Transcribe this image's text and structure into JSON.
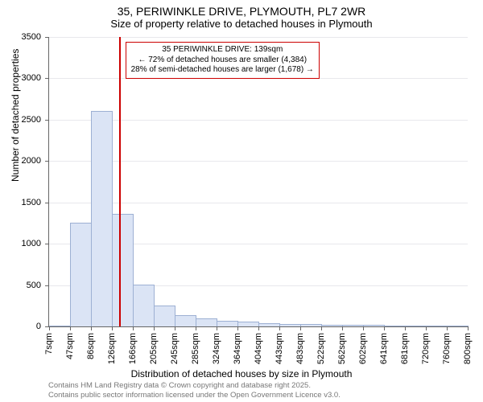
{
  "title": "35, PERIWINKLE DRIVE, PLYMOUTH, PL7 2WR",
  "subtitle": "Size of property relative to detached houses in Plymouth",
  "ylabel": "Number of detached properties",
  "xlabel": "Distribution of detached houses by size in Plymouth",
  "chart": {
    "type": "histogram",
    "background_color": "#ffffff",
    "grid_color": "#e8e8ec",
    "axis_color": "#666666",
    "bar_fill": "#dbe4f5",
    "bar_stroke": "#9db0d3",
    "marker_color": "#cc0000",
    "ylim": [
      0,
      3500
    ],
    "ytick_step": 500,
    "xticks": [
      "7sqm",
      "47sqm",
      "86sqm",
      "126sqm",
      "166sqm",
      "205sqm",
      "245sqm",
      "285sqm",
      "324sqm",
      "364sqm",
      "404sqm",
      "443sqm",
      "483sqm",
      "522sqm",
      "562sqm",
      "602sqm",
      "641sqm",
      "681sqm",
      "720sqm",
      "760sqm",
      "800sqm"
    ],
    "bars": [
      0,
      1240,
      2600,
      1350,
      500,
      240,
      130,
      90,
      60,
      45,
      30,
      20,
      15,
      10,
      10,
      8,
      5,
      5,
      3,
      3
    ],
    "marker_bin_index": 3,
    "marker_fraction_in_bin": 0.33
  },
  "annotation": {
    "line1": "35 PERIWINKLE DRIVE: 139sqm",
    "line2": "← 72% of detached houses are smaller (4,384)",
    "line3": "28% of semi-detached houses are larger (1,678) →"
  },
  "credits": {
    "line1": "Contains HM Land Registry data © Crown copyright and database right 2025.",
    "line2": "Contains public sector information licensed under the Open Government Licence v3.0."
  }
}
